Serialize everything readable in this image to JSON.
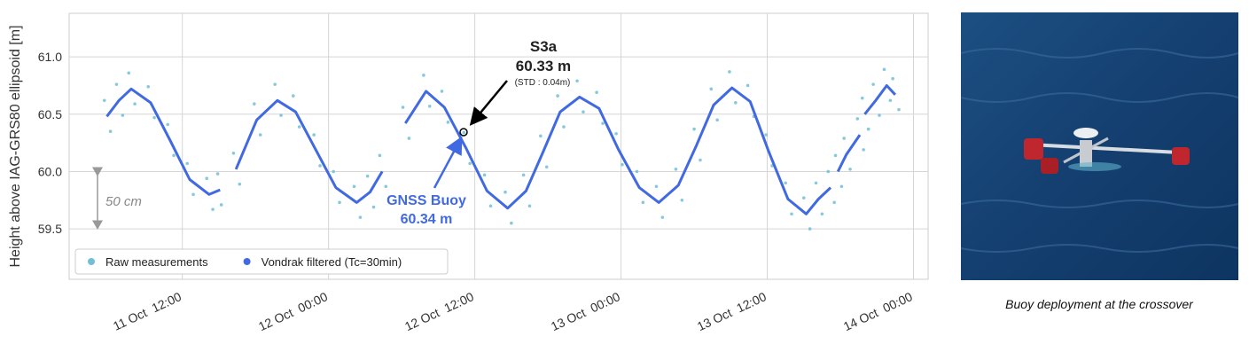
{
  "chart_data": {
    "type": "line",
    "y_label": "Height above IAG-GRS80 ellipsoid [m]",
    "xlim": [
      2.71,
      73.2
    ],
    "xticks": [
      {
        "value": 12,
        "label": "11 Oct  12:00"
      },
      {
        "value": 24,
        "label": "12 Oct  00:00"
      },
      {
        "value": 36,
        "label": "12 Oct  12:00"
      },
      {
        "value": 48,
        "label": "13 Oct  00:00"
      },
      {
        "value": 60,
        "label": "13 Oct  12:00"
      },
      {
        "value": 72,
        "label": "14 Oct  00:00"
      }
    ],
    "ylim": [
      59.06,
      61.38
    ],
    "yticks": [
      59.5,
      {
        "value": 60.0,
        "label": "60.0"
      },
      60.5,
      {
        "value": 61.0,
        "label": "61.0"
      }
    ],
    "grid": true,
    "legend": "lower left",
    "series": [
      {
        "name": "Raw measurements",
        "color": "#72bfd6",
        "style": "scatter",
        "x": [
          5.6,
          6.1,
          6.6,
          7.1,
          7.6,
          8.1,
          9.2,
          9.7,
          10.8,
          11.3,
          12.4,
          12.9,
          14.0,
          14.5,
          14.9,
          15.2,
          16.2,
          16.7,
          17.9,
          18.4,
          19.6,
          20.1,
          21.1,
          21.6,
          22.8,
          23.3,
          24.4,
          24.9,
          26.1,
          26.6,
          27.2,
          27.7,
          28.2,
          28.7,
          30.1,
          30.6,
          31.8,
          32.3,
          33.3,
          33.8,
          35.1,
          35.6,
          36.8,
          37.3,
          38.5,
          39.0,
          40.0,
          40.5,
          41.4,
          41.9,
          42.8,
          43.3,
          44.4,
          44.9,
          46.0,
          46.5,
          47.6,
          48.1,
          49.3,
          49.8,
          50.9,
          51.4,
          52.5,
          53.0,
          54.0,
          54.5,
          55.4,
          55.9,
          56.9,
          57.4,
          58.4,
          58.9,
          59.9,
          60.4,
          61.5,
          62.0,
          63.0,
          63.5,
          64.0,
          64.5,
          65.0,
          65.5,
          65.6,
          66.1,
          66.3,
          66.8,
          67.4,
          67.9,
          67.8,
          68.3,
          68.7,
          69.2,
          69.6,
          70.1,
          70.3,
          70.8
        ],
        "values": [
          60.62,
          60.35,
          60.76,
          60.49,
          60.86,
          60.59,
          60.74,
          60.47,
          60.41,
          60.14,
          60.07,
          59.8,
          59.94,
          59.67,
          59.98,
          59.71,
          60.16,
          59.89,
          60.59,
          60.32,
          60.76,
          60.49,
          60.66,
          60.39,
          60.32,
          60.05,
          60.0,
          59.73,
          59.87,
          59.6,
          59.96,
          59.69,
          60.14,
          59.87,
          60.56,
          60.29,
          60.84,
          60.57,
          60.7,
          60.43,
          60.34,
          60.07,
          59.97,
          59.7,
          59.82,
          59.55,
          59.97,
          59.7,
          60.31,
          60.04,
          60.66,
          60.39,
          60.79,
          60.52,
          60.69,
          60.42,
          60.33,
          60.06,
          60.0,
          59.73,
          59.87,
          59.6,
          60.02,
          59.75,
          60.37,
          60.1,
          60.72,
          60.45,
          60.87,
          60.6,
          60.75,
          60.48,
          60.32,
          60.05,
          59.9,
          59.63,
          59.77,
          59.5,
          59.9,
          59.63,
          60.0,
          59.73,
          60.14,
          59.87,
          60.29,
          60.02,
          60.46,
          60.19,
          60.64,
          60.37,
          60.76,
          60.49,
          60.89,
          60.62,
          60.81,
          60.54
        ]
      },
      {
        "name": "Vondrak filtered (Tc=30min)",
        "color": "#4169e1",
        "style": "line",
        "x": [
          5.8,
          6.8,
          7.8,
          9.4,
          11.0,
          12.6,
          14.2,
          15.1,
          null,
          16.4,
          18.1,
          19.8,
          21.3,
          23.0,
          24.6,
          26.3,
          27.4,
          28.4,
          null,
          30.3,
          32.0,
          33.5,
          35.3,
          37.0,
          38.7,
          40.2,
          41.6,
          43.0,
          44.6,
          46.2,
          47.8,
          49.5,
          51.1,
          52.7,
          54.2,
          55.6,
          57.1,
          58.6,
          60.1,
          61.7,
          63.2,
          64.2,
          65.2,
          null,
          65.8,
          66.5,
          67.6,
          null,
          68.0,
          68.9,
          69.8,
          70.5
        ],
        "values": [
          60.48,
          60.62,
          60.72,
          60.6,
          60.27,
          59.93,
          59.8,
          59.84,
          null,
          60.02,
          60.45,
          60.62,
          60.52,
          60.18,
          59.86,
          59.73,
          59.82,
          60.0,
          null,
          60.42,
          60.7,
          60.56,
          60.2,
          59.83,
          59.68,
          59.83,
          60.17,
          60.52,
          60.65,
          60.55,
          60.19,
          59.86,
          59.73,
          59.88,
          60.23,
          60.58,
          60.73,
          60.61,
          60.18,
          59.76,
          59.63,
          59.76,
          59.86,
          null,
          60.0,
          60.15,
          60.32,
          null,
          60.5,
          60.62,
          60.75,
          60.67
        ]
      }
    ],
    "annotations": {
      "s3a": {
        "name": "S3a",
        "value": "60.33 m",
        "std": "(STD : 0.04m)"
      },
      "buoy": {
        "name": "GNSS Buoy",
        "value": "60.34 m"
      },
      "scale": "50 cm"
    }
  },
  "photo": {
    "caption": "Buoy deployment at the crossover"
  }
}
